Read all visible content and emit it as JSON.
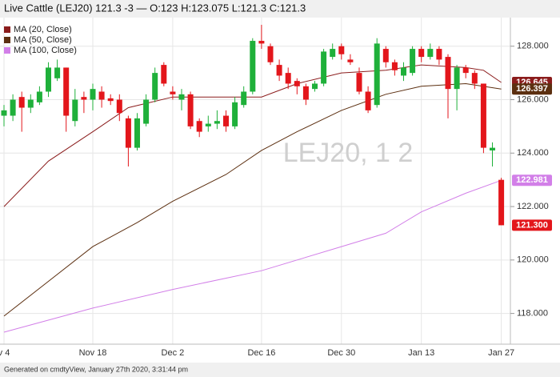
{
  "chart_data": {
    "type": "candlestick",
    "title": "Live Cattle (LEJ20) 121.3 -3 — O:123 H:123.075 L:121.3 C:121.3",
    "watermark": "LEJ20, 1 2",
    "footer": "Generated on cmdtyView, January 27th 2020, 3:31:44 pm",
    "categories": [
      "v 4",
      null,
      null,
      null,
      null,
      null,
      null,
      null,
      null,
      null,
      "Nov 18",
      null,
      null,
      null,
      null,
      null,
      null,
      null,
      null,
      "Dec 2",
      null,
      null,
      null,
      null,
      null,
      null,
      null,
      null,
      null,
      "Dec 16",
      null,
      null,
      null,
      null,
      null,
      null,
      null,
      null,
      "Dec 30",
      null,
      null,
      null,
      null,
      null,
      null,
      null,
      null,
      "Jan 13",
      null,
      null,
      null,
      null,
      null,
      null,
      null,
      null,
      "Jan 27"
    ],
    "open": [
      125.4,
      125.4,
      126.1,
      125.7,
      125.9,
      126.3,
      126.8,
      127.2,
      125.2,
      126.1,
      126.0,
      126.3,
      126.05,
      126.0,
      125.3,
      124.2,
      125.1,
      126.0,
      127.3,
      126.3,
      126.0,
      126.2,
      125.2,
      125.0,
      125.1,
      125.4,
      125.0,
      125.8,
      126.3,
      128.2,
      128.0,
      127.3,
      127.0,
      126.7,
      126.5,
      126.4,
      126.6,
      127.6,
      128.0,
      127.5,
      127.0,
      126.3,
      125.8,
      127.9,
      127.4,
      126.9,
      127.0,
      127.9,
      127.6,
      127.9,
      127.6,
      126.4,
      127.2,
      127.0,
      126.6,
      124.1,
      123
    ],
    "high": [
      125.8,
      126.2,
      126.3,
      126.2,
      126.5,
      127.4,
      127.5,
      127.2,
      126.4,
      126.3,
      126.6,
      126.5,
      126.2,
      126.2,
      125.4,
      125.5,
      126.2,
      127.2,
      127.4,
      126.5,
      126.4,
      126.3,
      125.3,
      125.4,
      125.6,
      125.6,
      126.1,
      126.5,
      128.3,
      128.8,
      128.1,
      127.5,
      127.2,
      126.8,
      126.6,
      126.7,
      127.9,
      128.1,
      128.1,
      127.7,
      127.2,
      126.5,
      128.3,
      128.0,
      127.5,
      127.4,
      128.0,
      128.0,
      128.1,
      128.0,
      127.7,
      127.3,
      127.3,
      127.1,
      126.6,
      124.4,
      123.075
    ],
    "low": [
      125.0,
      125.2,
      124.8,
      125.5,
      125.8,
      126.1,
      126.7,
      124.8,
      125.0,
      125.5,
      125.6,
      125.7,
      125.8,
      125.2,
      123.5,
      124.1,
      125.0,
      125.9,
      126.5,
      126.0,
      125.6,
      124.9,
      124.6,
      124.8,
      124.9,
      124.8,
      124.9,
      125.7,
      126.2,
      127.9,
      127.3,
      126.7,
      126.4,
      126.2,
      125.8,
      126.3,
      126.5,
      127.5,
      127.5,
      127.3,
      126.2,
      125.5,
      125.7,
      127.2,
      126.9,
      126.7,
      126.9,
      127.4,
      127.5,
      127.3,
      125.3,
      125.6,
      126.8,
      126.4,
      124.0,
      123.5,
      121.3
    ],
    "close": [
      125.6,
      126.0,
      125.7,
      126.0,
      126.3,
      127.2,
      127.2,
      125.4,
      126.0,
      126.0,
      126.4,
      126.0,
      125.95,
      125.5,
      124.2,
      125.3,
      126.0,
      127.0,
      126.6,
      126.2,
      126.2,
      125.0,
      124.8,
      125.1,
      125.2,
      125.0,
      125.9,
      126.3,
      128.2,
      128.1,
      127.4,
      126.9,
      126.6,
      126.5,
      126.0,
      126.6,
      127.8,
      127.9,
      127.7,
      127.4,
      126.3,
      125.6,
      128.1,
      127.4,
      127.1,
      127.2,
      127.9,
      127.6,
      127.9,
      127.5,
      126.4,
      127.2,
      127.0,
      126.6,
      124.2,
      124.2,
      121.3
    ],
    "last_label": "121.300",
    "up_color": "#1fb03a",
    "down_color": "#e3161b",
    "series": [
      {
        "name": "MA (20, Close)",
        "color": "#8b1c1c",
        "x": [
          0,
          5,
          10,
          14,
          19,
          25,
          29,
          33,
          38,
          43,
          47,
          52,
          54,
          56
        ],
        "values": [
          122.0,
          123.7,
          124.8,
          125.7,
          126.1,
          126.1,
          126.1,
          126.6,
          127.0,
          127.1,
          127.3,
          127.2,
          127.1,
          126.645
        ],
        "last_label": "126.645"
      },
      {
        "name": "MA (50, Close)",
        "color": "#5c2f10",
        "x": [
          0,
          5,
          10,
          15,
          19,
          25,
          29,
          33,
          38,
          43,
          47,
          52,
          56
        ],
        "values": [
          117.9,
          119.2,
          120.5,
          121.4,
          122.2,
          123.2,
          124.1,
          124.8,
          125.6,
          126.2,
          126.5,
          126.6,
          126.397
        ],
        "last_label": "126.397"
      },
      {
        "name": "MA (100, Close)",
        "color": "#d27fe8",
        "x": [
          0,
          10,
          19,
          29,
          38,
          43,
          47,
          52,
          56
        ],
        "values": [
          117.3,
          118.2,
          118.9,
          119.6,
          120.5,
          121.0,
          121.8,
          122.5,
          122.981
        ],
        "last_label": "122.981"
      }
    ],
    "ylim": [
      116.85,
      129.07
    ],
    "yticks": [
      {
        "value": 118,
        "label": "118.000"
      },
      {
        "value": 120,
        "label": "120.000"
      },
      {
        "value": 122,
        "label": "122.000"
      },
      {
        "value": 124,
        "label": "124.000"
      },
      {
        "value": 126,
        "label": "126.000"
      },
      {
        "value": 128,
        "label": "128.000"
      }
    ],
    "grid": true
  }
}
